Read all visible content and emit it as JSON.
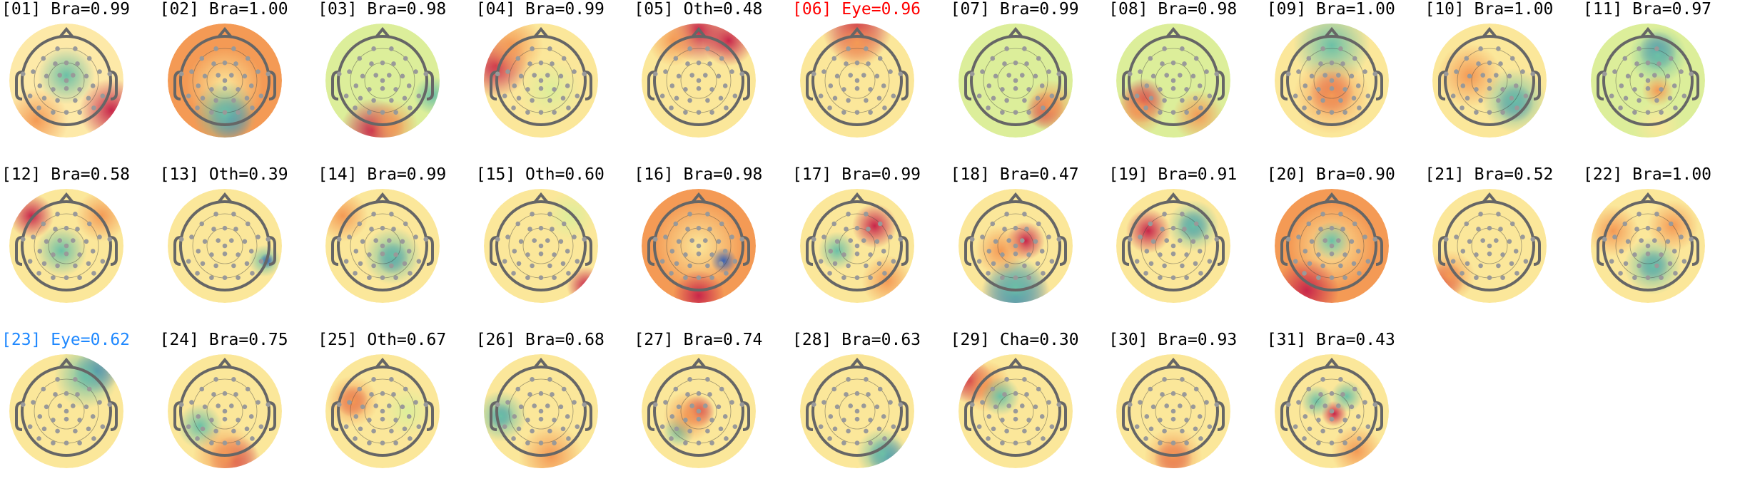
{
  "components": [
    {
      "label": "[01] Bra=0.99",
      "color": "#000000"
    },
    {
      "label": "[02] Bra=1.00",
      "color": "#000000"
    },
    {
      "label": "[03] Bra=0.98",
      "color": "#000000"
    },
    {
      "label": "[04] Bra=0.99",
      "color": "#000000"
    },
    {
      "label": "[05] Oth=0.48",
      "color": "#000000"
    },
    {
      "label": "[06] Eye=0.96",
      "color": "#ff0000"
    },
    {
      "label": "[07] Bra=0.99",
      "color": "#000000"
    },
    {
      "label": "[08] Bra=0.98",
      "color": "#000000"
    },
    {
      "label": "[09] Bra=1.00",
      "color": "#000000"
    },
    {
      "label": "[10] Bra=1.00",
      "color": "#000000"
    },
    {
      "label": "[11] Bra=0.97",
      "color": "#000000"
    },
    {
      "label": "[12] Bra=0.58",
      "color": "#000000"
    },
    {
      "label": "[13] Oth=0.39",
      "color": "#000000"
    },
    {
      "label": "[14] Bra=0.99",
      "color": "#000000"
    },
    {
      "label": "[15] Oth=0.60",
      "color": "#000000"
    },
    {
      "label": "[16] Bra=0.98",
      "color": "#000000"
    },
    {
      "label": "[17] Bra=0.99",
      "color": "#000000"
    },
    {
      "label": "[18] Bra=0.47",
      "color": "#000000"
    },
    {
      "label": "[19] Bra=0.91",
      "color": "#000000"
    },
    {
      "label": "[20] Bra=0.90",
      "color": "#000000"
    },
    {
      "label": "[21] Bra=0.52",
      "color": "#000000"
    },
    {
      "label": "[22] Bra=1.00",
      "color": "#000000"
    },
    {
      "label": "[23] Eye=0.62",
      "color": "#1e88ff"
    },
    {
      "label": "[24] Bra=0.75",
      "color": "#000000"
    },
    {
      "label": "[25] Oth=0.67",
      "color": "#000000"
    },
    {
      "label": "[26] Bra=0.68",
      "color": "#000000"
    },
    {
      "label": "[27] Bra=0.74",
      "color": "#000000"
    },
    {
      "label": "[28] Bra=0.63",
      "color": "#000000"
    },
    {
      "label": "[29] Cha=0.30",
      "color": "#000000"
    },
    {
      "label": "[30] Bra=0.93",
      "color": "#000000"
    },
    {
      "label": "[31] Bra=0.43",
      "color": "#000000"
    }
  ]
}
